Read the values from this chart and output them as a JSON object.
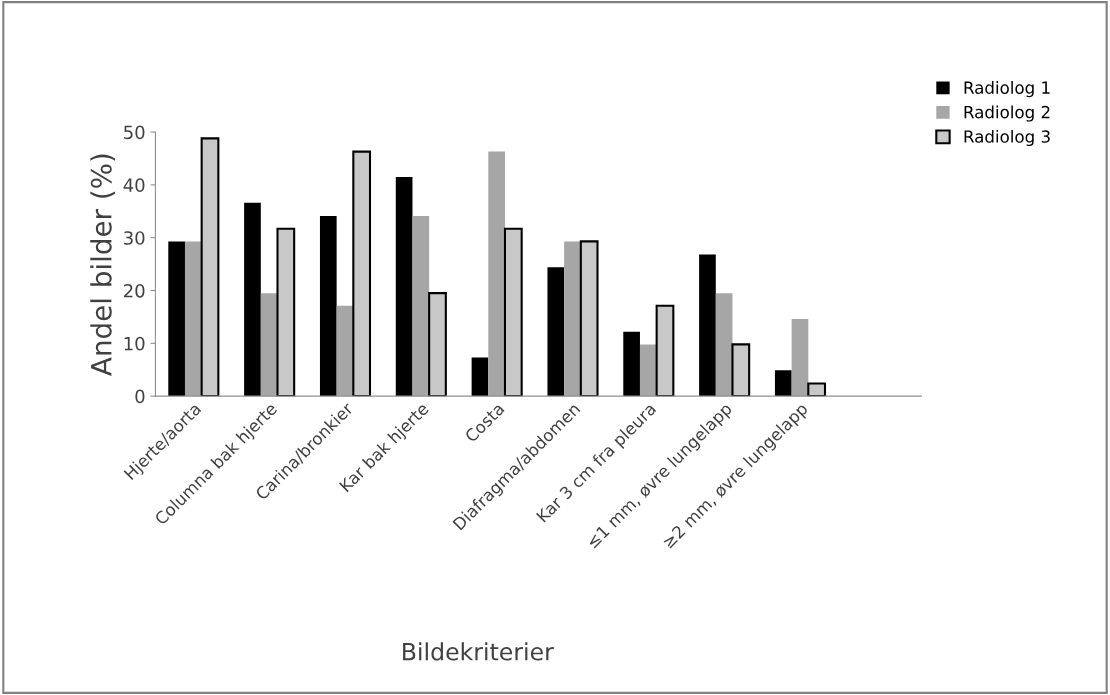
{
  "chart_data": {
    "type": "bar",
    "xlabel": "Bildekriterier",
    "ylabel": "Andel bilder (%)",
    "categories": [
      "Hjerte/aorta",
      "Columna bak hjerte",
      "Carina/bronkier",
      "Kar bak hjerte",
      "Costa",
      "Diafragma/abdomen",
      "Kar 3 cm fra pleura",
      "≤1 mm, øvre lungelapp",
      "≥2 mm, øvre lungelapp"
    ],
    "series": [
      {
        "name": "Radiolog 1",
        "color": "#000000",
        "values": [
          29.3,
          36.6,
          34.1,
          41.5,
          7.3,
          24.4,
          12.2,
          26.8,
          4.9
        ]
      },
      {
        "name": "Radiolog 2",
        "color": "#a6a6a6",
        "values": [
          29.3,
          19.5,
          17.1,
          34.1,
          46.3,
          29.3,
          9.8,
          19.5,
          14.6
        ]
      },
      {
        "name": "Radiolog 3",
        "color": "#c8c8c8",
        "values": [
          48.8,
          31.7,
          46.3,
          19.5,
          31.7,
          29.3,
          17.1,
          9.8,
          2.4
        ]
      }
    ],
    "ylim": [
      0,
      50
    ],
    "yticks": [
      0,
      10,
      20,
      30,
      40,
      50
    ],
    "grid": false,
    "legend": "top right"
  }
}
